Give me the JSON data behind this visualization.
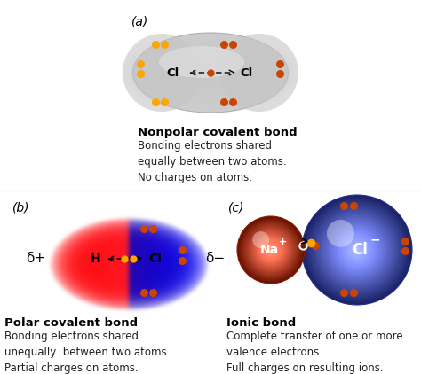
{
  "bg_color": "#ffffff",
  "label_a": "(a)",
  "label_b": "(b)",
  "label_c": "(c)",
  "nonpolar_title": "Nonpolar covalent bond",
  "nonpolar_desc": "Bonding electrons shared\nequally between two atoms.\nNo charges on atoms.",
  "polar_title": "Polar covalent bond",
  "polar_desc": "Bonding electrons shared\nunequally  between two atoms.\nPartial charges on atoms.",
  "ionic_title": "Ionic bond",
  "ionic_desc": "Complete transfer of one or more\nvalence electrons.\nFull charges on resulting ions.",
  "orange1": "#FFA500",
  "orange2": "#CC4400",
  "na_color": "#CC2200",
  "cl_ion_color": "#3333BB",
  "delta_plus": "δ+",
  "delta_minus": "δ−",
  "figsize": [
    4.74,
    4.22
  ],
  "dpi": 100
}
